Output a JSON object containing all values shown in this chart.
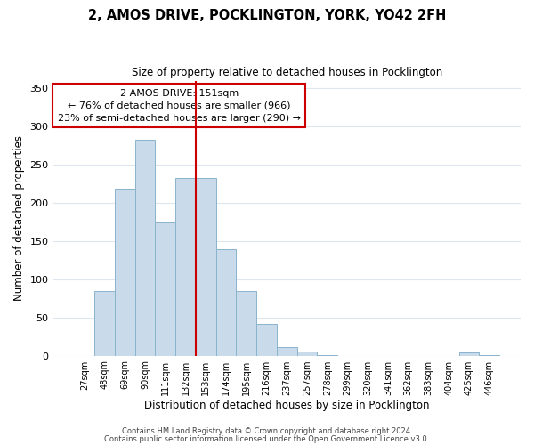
{
  "title": "2, AMOS DRIVE, POCKLINGTON, YORK, YO42 2FH",
  "subtitle": "Size of property relative to detached houses in Pocklington",
  "xlabel": "Distribution of detached houses by size in Pocklington",
  "ylabel": "Number of detached properties",
  "bar_labels": [
    "27sqm",
    "48sqm",
    "69sqm",
    "90sqm",
    "111sqm",
    "132sqm",
    "153sqm",
    "174sqm",
    "195sqm",
    "216sqm",
    "237sqm",
    "257sqm",
    "278sqm",
    "299sqm",
    "320sqm",
    "341sqm",
    "362sqm",
    "383sqm",
    "404sqm",
    "425sqm",
    "446sqm"
  ],
  "bar_values": [
    0,
    85,
    219,
    283,
    175,
    232,
    232,
    139,
    84,
    41,
    11,
    5,
    1,
    0,
    0,
    0,
    0,
    0,
    0,
    4,
    1
  ],
  "bar_color": "#c9daea",
  "bar_edgecolor": "#8ab4cc",
  "vline_color": "#cc0000",
  "annotation_title": "2 AMOS DRIVE: 151sqm",
  "annotation_line1": "← 76% of detached houses are smaller (966)",
  "annotation_line2": "23% of semi-detached houses are larger (290) →",
  "annotation_box_edgecolor": "#cc0000",
  "ylim": [
    0,
    360
  ],
  "yticks": [
    0,
    50,
    100,
    150,
    200,
    250,
    300,
    350
  ],
  "footer1": "Contains HM Land Registry data © Crown copyright and database right 2024.",
  "footer2": "Contains public sector information licensed under the Open Government Licence v3.0.",
  "background_color": "#ffffff",
  "grid_color": "#dce6f0"
}
